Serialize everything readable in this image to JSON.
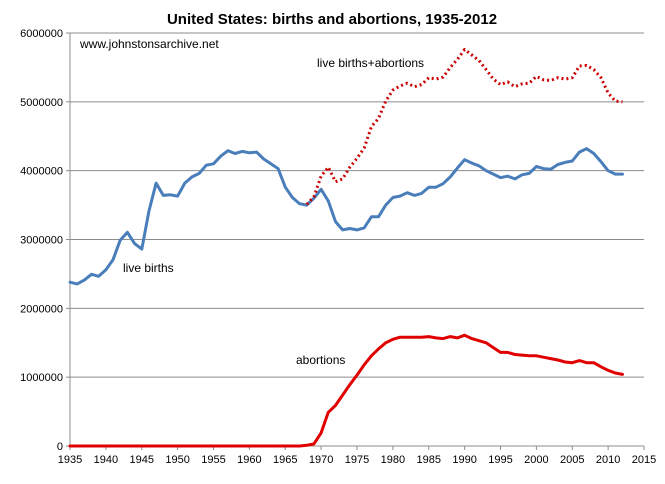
{
  "chart_data": {
    "type": "line",
    "title": "United States:  births and abortions, 1935-2012",
    "subtitle": "www.johnstonsarchive.net",
    "xlabel": "",
    "ylabel": "",
    "xlim": [
      1935,
      2015
    ],
    "ylim": [
      0,
      6000000
    ],
    "x_ticks": [
      1935,
      1940,
      1945,
      1950,
      1955,
      1960,
      1965,
      1970,
      1975,
      1980,
      1985,
      1990,
      1995,
      2000,
      2005,
      2010,
      2015
    ],
    "y_ticks": [
      0,
      1000000,
      2000000,
      3000000,
      4000000,
      5000000,
      6000000
    ],
    "grid": "horizontal",
    "legend": "none",
    "series": [
      {
        "name": "live births",
        "color": "#4a7ebb",
        "style": "solid",
        "x": [
          1935,
          1936,
          1937,
          1938,
          1939,
          1940,
          1941,
          1942,
          1943,
          1944,
          1945,
          1946,
          1947,
          1948,
          1949,
          1950,
          1951,
          1952,
          1953,
          1954,
          1955,
          1956,
          1957,
          1958,
          1959,
          1960,
          1961,
          1962,
          1963,
          1964,
          1965,
          1966,
          1967,
          1968,
          1969,
          1970,
          1971,
          1972,
          1973,
          1974,
          1975,
          1976,
          1977,
          1978,
          1979,
          1980,
          1981,
          1982,
          1983,
          1984,
          1985,
          1986,
          1987,
          1988,
          1989,
          1990,
          1991,
          1992,
          1993,
          1994,
          1995,
          1996,
          1997,
          1998,
          1999,
          2000,
          2001,
          2002,
          2003,
          2004,
          2005,
          2006,
          2007,
          2008,
          2009,
          2010,
          2011,
          2012
        ],
        "values": [
          2380000,
          2355000,
          2410000,
          2495000,
          2465000,
          2560000,
          2705000,
          2990000,
          3105000,
          2940000,
          2860000,
          3410000,
          3820000,
          3640000,
          3650000,
          3630000,
          3820000,
          3910000,
          3960000,
          4080000,
          4100000,
          4210000,
          4290000,
          4250000,
          4280000,
          4260000,
          4270000,
          4170000,
          4100000,
          4030000,
          3760000,
          3610000,
          3520000,
          3500000,
          3600000,
          3730000,
          3560000,
          3260000,
          3140000,
          3160000,
          3140000,
          3170000,
          3330000,
          3330000,
          3500000,
          3610000,
          3630000,
          3680000,
          3640000,
          3670000,
          3760000,
          3760000,
          3810000,
          3910000,
          4040000,
          4160000,
          4110000,
          4070000,
          4000000,
          3950000,
          3900000,
          3920000,
          3880000,
          3940000,
          3960000,
          4060000,
          4030000,
          4020000,
          4090000,
          4120000,
          4140000,
          4270000,
          4320000,
          4250000,
          4130000,
          4000000,
          3950000,
          3950000
        ]
      },
      {
        "name": "live births+abortions",
        "color": "#cc0000",
        "style": "dotted",
        "x": [
          1968,
          1969,
          1970,
          1971,
          1972,
          1973,
          1974,
          1975,
          1976,
          1977,
          1978,
          1979,
          1980,
          1981,
          1982,
          1983,
          1984,
          1985,
          1986,
          1987,
          1988,
          1989,
          1990,
          1991,
          1992,
          1993,
          1994,
          1995,
          1996,
          1997,
          1998,
          1999,
          2000,
          2001,
          2002,
          2003,
          2004,
          2005,
          2006,
          2007,
          2008,
          2009,
          2010,
          2011,
          2012
        ],
        "values": [
          3510000,
          3620000,
          3920000,
          4050000,
          3840000,
          3880000,
          4050000,
          4180000,
          4330000,
          4640000,
          4760000,
          5010000,
          5170000,
          5230000,
          5270000,
          5220000,
          5250000,
          5350000,
          5330000,
          5360000,
          5500000,
          5620000,
          5760000,
          5680000,
          5600000,
          5470000,
          5330000,
          5250000,
          5290000,
          5220000,
          5260000,
          5270000,
          5370000,
          5320000,
          5310000,
          5350000,
          5330000,
          5350000,
          5520000,
          5530000,
          5470000,
          5350000,
          5130000,
          5010000,
          5000000
        ]
      },
      {
        "name": "abortions",
        "color": "#e00000",
        "style": "solid",
        "x": [
          1935,
          1966,
          1967,
          1968,
          1969,
          1970,
          1971,
          1972,
          1973,
          1974,
          1975,
          1976,
          1977,
          1978,
          1979,
          1980,
          1981,
          1982,
          1983,
          1984,
          1985,
          1986,
          1987,
          1988,
          1989,
          1990,
          1991,
          1992,
          1993,
          1994,
          1995,
          1996,
          1997,
          1998,
          1999,
          2000,
          2001,
          2002,
          2003,
          2004,
          2005,
          2006,
          2007,
          2008,
          2009,
          2010,
          2011,
          2012
        ],
        "values": [
          0,
          0,
          0,
          10000,
          30000,
          190000,
          490000,
          590000,
          740000,
          890000,
          1030000,
          1180000,
          1310000,
          1410000,
          1500000,
          1550000,
          1580000,
          1580000,
          1580000,
          1580000,
          1590000,
          1570000,
          1560000,
          1590000,
          1570000,
          1610000,
          1560000,
          1530000,
          1500000,
          1430000,
          1360000,
          1360000,
          1330000,
          1320000,
          1310000,
          1310000,
          1290000,
          1270000,
          1250000,
          1220000,
          1210000,
          1240000,
          1210000,
          1210000,
          1150000,
          1100000,
          1060000,
          1040000
        ]
      }
    ],
    "annotations": [
      "live births",
      "live births+abortions",
      "abortions"
    ]
  }
}
